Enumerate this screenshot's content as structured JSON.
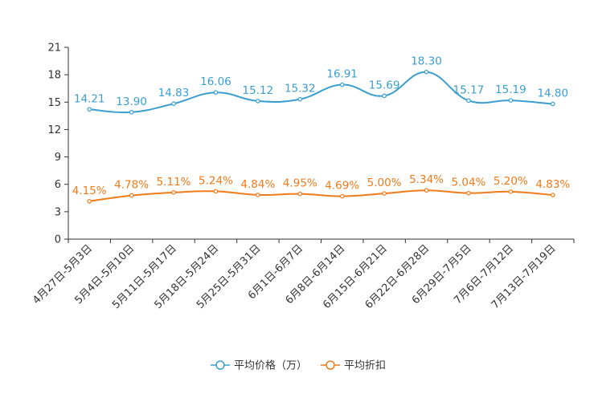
{
  "chart_data": {
    "type": "line",
    "title": "",
    "xlabel": "",
    "ylabel": "",
    "ylim": [
      0,
      21
    ],
    "yticks": [
      0,
      3,
      6,
      9,
      12,
      15,
      18,
      21
    ],
    "grid": false,
    "legend_position": "bottom",
    "categories": [
      "4月27日-5月3日",
      "5月4日-5月10日",
      "5月11日-5月17日",
      "5月18日-5月24日",
      "5月25日-5月31日",
      "6月1日-6月7日",
      "6月8日-6月14日",
      "6月15日-6月21日",
      "6月22日-6月28日",
      "6月29日-7月5日",
      "7月6日-7月12日",
      "7月13日-7月19日"
    ],
    "series": [
      {
        "name": "平均价格（万）",
        "color": "#3a9fcf",
        "values": [
          14.21,
          13.9,
          14.83,
          16.06,
          15.12,
          15.32,
          16.91,
          15.69,
          18.3,
          15.17,
          15.19,
          14.8
        ],
        "labels": [
          "14.21",
          "13.90",
          "14.83",
          "16.06",
          "15.12",
          "15.32",
          "16.91",
          "15.69",
          "18.30",
          "15.17",
          "15.19",
          "14.80"
        ]
      },
      {
        "name": "平均折扣",
        "color": "#f07b1a",
        "values": [
          4.15,
          4.78,
          5.11,
          5.24,
          4.84,
          4.95,
          4.69,
          5.0,
          5.34,
          5.04,
          5.2,
          4.83
        ],
        "labels": [
          "4.15%",
          "4.78%",
          "5.11%",
          "5.24%",
          "4.84%",
          "4.95%",
          "4.69%",
          "5.00%",
          "5.34%",
          "5.04%",
          "5.20%",
          "4.83%"
        ]
      }
    ]
  }
}
